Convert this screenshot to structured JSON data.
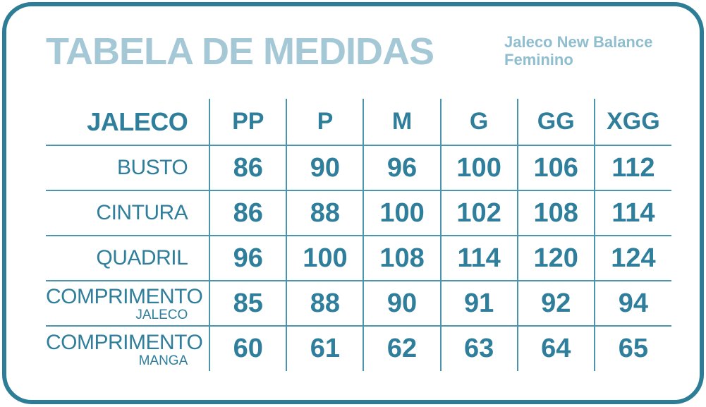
{
  "header": {
    "title": "TABELA DE MEDIDAS",
    "subtitle_line1": "Jaleco New Balance",
    "subtitle_line2": "Feminino"
  },
  "table": {
    "header": {
      "label": "JALECO",
      "sizes": [
        "PP",
        "P",
        "M",
        "G",
        "GG",
        "XGG"
      ]
    },
    "rows": [
      {
        "label": "BUSTO",
        "sublabel": "",
        "values": [
          "86",
          "90",
          "96",
          "100",
          "106",
          "112"
        ]
      },
      {
        "label": "CINTURA",
        "sublabel": "",
        "values": [
          "86",
          "88",
          "100",
          "102",
          "108",
          "114"
        ]
      },
      {
        "label": "QUADRIL",
        "sublabel": "",
        "values": [
          "96",
          "100",
          "108",
          "114",
          "120",
          "124"
        ]
      },
      {
        "label": "COMPRIMENTO",
        "sublabel": "JALECO",
        "values": [
          "85",
          "88",
          "90",
          "91",
          "92",
          "94"
        ]
      },
      {
        "label": "COMPRIMENTO",
        "sublabel": "MANGA",
        "values": [
          "60",
          "61",
          "62",
          "63",
          "64",
          "65"
        ]
      }
    ]
  },
  "chart_data": {
    "type": "table",
    "title": "TABELA DE MEDIDAS",
    "subtitle": "Jaleco New Balance Feminino",
    "columns": [
      "JALECO",
      "PP",
      "P",
      "M",
      "G",
      "GG",
      "XGG"
    ],
    "rows": [
      [
        "BUSTO",
        86,
        90,
        96,
        100,
        106,
        112
      ],
      [
        "CINTURA",
        86,
        88,
        100,
        102,
        108,
        114
      ],
      [
        "QUADRIL",
        96,
        100,
        108,
        114,
        120,
        124
      ],
      [
        "COMPRIMENTO JALECO",
        85,
        88,
        90,
        91,
        92,
        94
      ],
      [
        "COMPRIMENTO MANGA",
        60,
        61,
        62,
        63,
        64,
        65
      ]
    ]
  },
  "colors": {
    "border": "#2e7d96",
    "line": "#4a94ad",
    "ink": "#2e7e9c",
    "title": "#a4c8d6",
    "subtitle": "#8fbecf",
    "bg": "#ffffff"
  }
}
